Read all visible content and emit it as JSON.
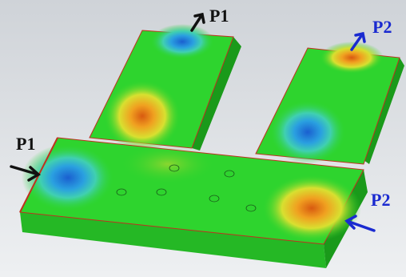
{
  "labels": [
    {
      "text": "P1"
    },
    {
      "text": "P1"
    },
    {
      "text": "P2"
    },
    {
      "text": "P2"
    }
  ]
}
